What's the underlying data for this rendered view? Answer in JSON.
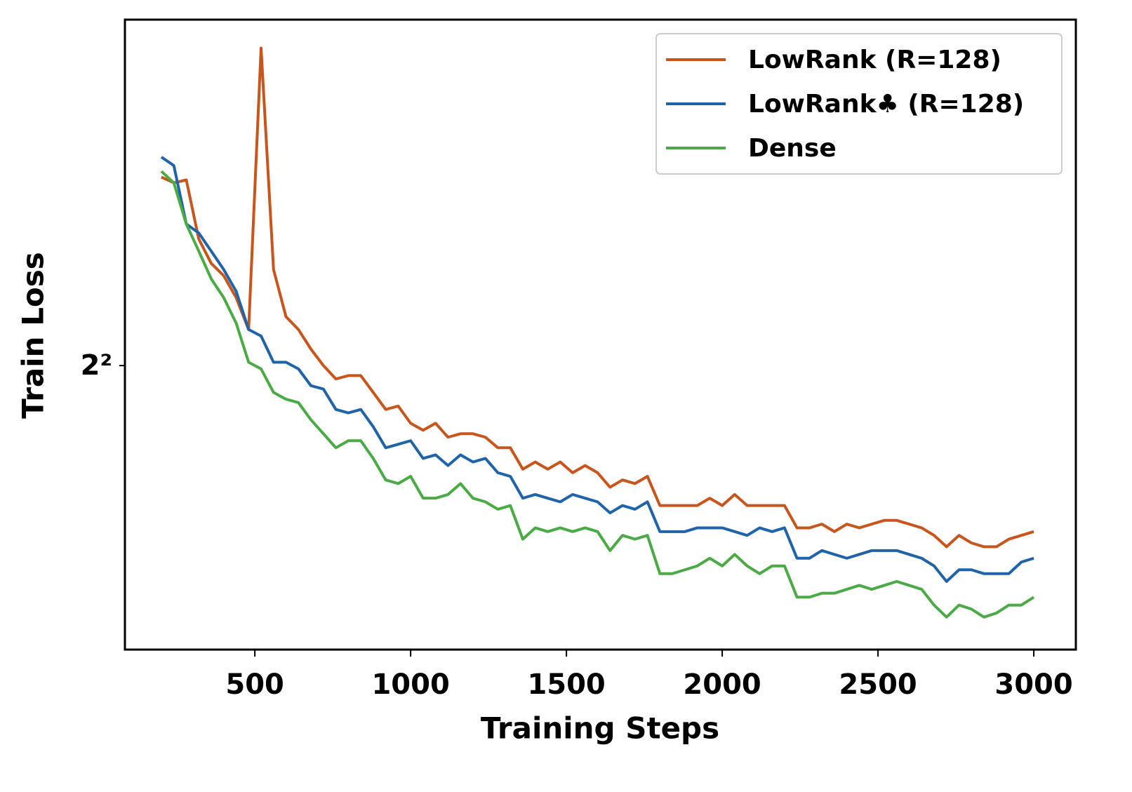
{
  "chart_data": {
    "type": "line",
    "x_label": "Training Steps",
    "y_label": "Train Loss",
    "x": [
      200,
      240,
      280,
      320,
      360,
      400,
      440,
      480,
      520,
      560,
      600,
      640,
      680,
      720,
      760,
      800,
      840,
      880,
      920,
      960,
      1000,
      1040,
      1080,
      1120,
      1160,
      1200,
      1240,
      1280,
      1320,
      1360,
      1400,
      1440,
      1480,
      1520,
      1560,
      1600,
      1640,
      1680,
      1720,
      1760,
      1800,
      1840,
      1880,
      1920,
      1960,
      2000,
      2040,
      2080,
      2120,
      2160,
      2200,
      2240,
      2280,
      2320,
      2360,
      2400,
      2440,
      2480,
      2520,
      2560,
      2600,
      2640,
      2680,
      2720,
      2760,
      2800,
      2840,
      2880,
      2920,
      2960,
      3000
    ],
    "series": [
      {
        "name": "LowRank (R=128)",
        "color": "#c8551b",
        "values": [
          4.61,
          4.59,
          4.6,
          4.4,
          4.32,
          4.28,
          4.21,
          4.11,
          5.08,
          4.3,
          4.15,
          4.11,
          4.05,
          4.0,
          3.96,
          3.97,
          3.97,
          3.92,
          3.87,
          3.88,
          3.83,
          3.81,
          3.83,
          3.79,
          3.8,
          3.8,
          3.79,
          3.76,
          3.76,
          3.7,
          3.72,
          3.7,
          3.72,
          3.69,
          3.71,
          3.69,
          3.65,
          3.67,
          3.66,
          3.68,
          3.6,
          3.6,
          3.6,
          3.6,
          3.62,
          3.6,
          3.63,
          3.6,
          3.6,
          3.6,
          3.6,
          3.54,
          3.54,
          3.55,
          3.53,
          3.55,
          3.54,
          3.55,
          3.56,
          3.56,
          3.55,
          3.54,
          3.52,
          3.49,
          3.52,
          3.5,
          3.49,
          3.49,
          3.51,
          3.52,
          3.53
        ]
      },
      {
        "name": "LowRank♣ (R=128)",
        "color": "#1f63a8",
        "values": [
          4.68,
          4.65,
          4.45,
          4.42,
          4.36,
          4.3,
          4.23,
          4.11,
          4.09,
          4.01,
          4.01,
          3.99,
          3.94,
          3.93,
          3.87,
          3.86,
          3.87,
          3.82,
          3.76,
          3.77,
          3.78,
          3.73,
          3.74,
          3.71,
          3.74,
          3.72,
          3.73,
          3.69,
          3.68,
          3.62,
          3.63,
          3.62,
          3.61,
          3.63,
          3.62,
          3.61,
          3.58,
          3.6,
          3.59,
          3.61,
          3.53,
          3.53,
          3.53,
          3.54,
          3.54,
          3.54,
          3.53,
          3.52,
          3.54,
          3.53,
          3.54,
          3.46,
          3.46,
          3.48,
          3.47,
          3.46,
          3.47,
          3.48,
          3.48,
          3.48,
          3.47,
          3.46,
          3.44,
          3.4,
          3.43,
          3.43,
          3.42,
          3.42,
          3.42,
          3.45,
          3.46
        ]
      },
      {
        "name": "Dense",
        "color": "#4aab45",
        "values": [
          4.63,
          4.59,
          4.45,
          4.36,
          4.27,
          4.21,
          4.13,
          4.01,
          3.99,
          3.92,
          3.9,
          3.89,
          3.84,
          3.8,
          3.76,
          3.78,
          3.78,
          3.73,
          3.67,
          3.66,
          3.68,
          3.62,
          3.62,
          3.63,
          3.66,
          3.62,
          3.61,
          3.59,
          3.6,
          3.51,
          3.54,
          3.53,
          3.54,
          3.53,
          3.54,
          3.53,
          3.48,
          3.52,
          3.51,
          3.52,
          3.42,
          3.42,
          3.43,
          3.44,
          3.46,
          3.44,
          3.47,
          3.44,
          3.42,
          3.44,
          3.44,
          3.36,
          3.36,
          3.37,
          3.37,
          3.38,
          3.39,
          3.38,
          3.39,
          3.4,
          3.39,
          3.38,
          3.34,
          3.31,
          3.34,
          3.33,
          3.31,
          3.32,
          3.34,
          3.34,
          3.36
        ]
      }
    ],
    "xlim": [
      83,
      3135
    ],
    "xticks": [
      500,
      1000,
      1500,
      2000,
      2500,
      3000
    ],
    "ylim": [
      3.23,
      5.19
    ],
    "yticks": [
      {
        "value": 4,
        "label": "2²"
      }
    ],
    "yscale": "log",
    "grid": false,
    "legend_loc": "upper right"
  }
}
